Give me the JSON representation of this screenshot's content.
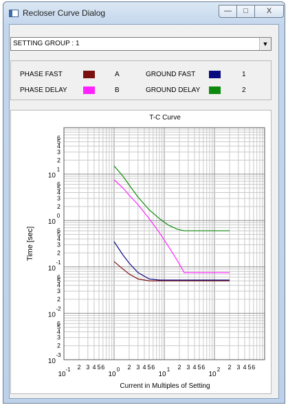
{
  "window": {
    "title": "Recloser Curve Dialog",
    "min_glyph": "—",
    "max_glyph": "□",
    "close_glyph": "X"
  },
  "setting_group": {
    "value": "SETTING GROUP : 1",
    "arrow_glyph": "▼"
  },
  "legend": [
    {
      "label": "PHASE FAST",
      "color": "#7b0e0e",
      "key": "A"
    },
    {
      "label": "PHASE DELAY",
      "color": "#ff22ff",
      "key": "B"
    },
    {
      "label": "GROUND FAST",
      "color": "#0a0a80",
      "key": "1"
    },
    {
      "label": "GROUND DELAY",
      "color": "#0d8a0d",
      "key": "2"
    }
  ],
  "chart_data": {
    "type": "line",
    "title": "T-C Curve",
    "xlabel": "Current in Multiples of Setting",
    "ylabel": "Time [sec]",
    "x_scale": "log",
    "y_scale": "log",
    "xlim": [
      0.1,
      1000
    ],
    "ylim": [
      0.001,
      100
    ],
    "grid": true,
    "x_ticks": [
      {
        "value": 0.1,
        "base": "10",
        "exp": "-1"
      },
      {
        "value": 1,
        "base": "10",
        "exp": "0"
      },
      {
        "value": 10,
        "base": "10",
        "exp": "1"
      },
      {
        "value": 100,
        "base": "10",
        "exp": "2"
      }
    ],
    "y_ticks": [
      {
        "value": 0.001,
        "base": "10",
        "exp": "-3"
      },
      {
        "value": 0.01,
        "base": "10",
        "exp": "-2"
      },
      {
        "value": 0.1,
        "base": "10",
        "exp": "-1"
      },
      {
        "value": 1,
        "base": "10",
        "exp": "0"
      },
      {
        "value": 10,
        "base": "10",
        "exp": "1"
      }
    ],
    "minor_labels": [
      "2",
      "3",
      "4",
      "5",
      "6"
    ],
    "series": [
      {
        "key": "A",
        "color": "#7b0e0e",
        "x": [
          1,
          1.5,
          2,
          3,
          5,
          8,
          12,
          20,
          50,
          200
        ],
        "y": [
          0.13,
          0.09,
          0.07,
          0.055,
          0.05,
          0.05,
          0.05,
          0.05,
          0.05,
          0.05
        ]
      },
      {
        "key": "B",
        "color": "#ff22ff",
        "x": [
          1,
          1.5,
          2,
          3,
          5,
          8,
          12,
          18,
          25,
          40,
          200
        ],
        "y": [
          7.5,
          5,
          3.5,
          2.2,
          1.1,
          0.55,
          0.28,
          0.14,
          0.075,
          0.075,
          0.075
        ]
      },
      {
        "key": "1",
        "color": "#0a0a80",
        "x": [
          1,
          1.5,
          2,
          3,
          5,
          8,
          12,
          20,
          50,
          200
        ],
        "y": [
          0.35,
          0.18,
          0.12,
          0.075,
          0.055,
          0.052,
          0.052,
          0.052,
          0.052,
          0.052
        ]
      },
      {
        "key": "2",
        "color": "#0d8a0d",
        "x": [
          1,
          1.5,
          2,
          3,
          5,
          8,
          12,
          18,
          25,
          40,
          200
        ],
        "y": [
          15,
          9,
          5.8,
          3.2,
          1.7,
          1.1,
          0.8,
          0.65,
          0.6,
          0.6,
          0.6
        ]
      }
    ]
  }
}
